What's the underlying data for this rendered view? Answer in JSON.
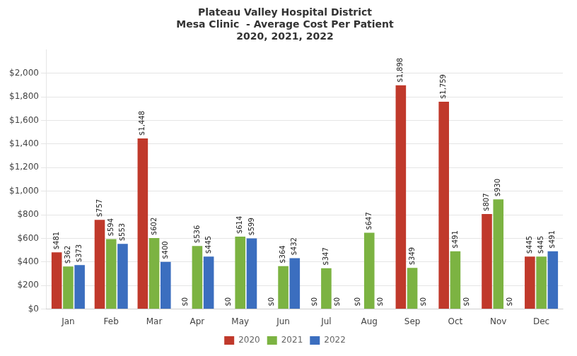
{
  "chart_data": {
    "type": "bar",
    "title": [
      "Plateau Valley Hospital District",
      "Mesa Clinic  - Average Cost Per Patient",
      "2020, 2021, 2022"
    ],
    "categories": [
      "Jan",
      "Feb",
      "Mar",
      "Apr",
      "May",
      "Jun",
      "Jul",
      "Aug",
      "Sep",
      "Oct",
      "Nov",
      "Dec"
    ],
    "series": [
      {
        "name": "2020",
        "color": "#C0392B",
        "values": [
          481,
          757,
          1448,
          0,
          0,
          0,
          0,
          0,
          1898,
          1759,
          807,
          445
        ],
        "value_labels": [
          "$481",
          "$757",
          "$1,448",
          "$0",
          "$0",
          "$0",
          "$0",
          "$0",
          "$1,898",
          "$1,759",
          "$807",
          "$445"
        ]
      },
      {
        "name": "2021",
        "color": "#7CB342",
        "values": [
          362,
          594,
          602,
          536,
          614,
          364,
          347,
          647,
          349,
          491,
          930,
          445
        ],
        "value_labels": [
          "$362",
          "$594",
          "$602",
          "$536",
          "$614",
          "$364",
          "$347",
          "$647",
          "$349",
          "$491",
          "$930",
          "$445"
        ]
      },
      {
        "name": "2022",
        "color": "#3B6EBF",
        "values": [
          373,
          553,
          400,
          445,
          599,
          432,
          0,
          0,
          0,
          0,
          0,
          491
        ],
        "value_labels": [
          "$373",
          "$553",
          "$400",
          "$445",
          "$599",
          "$432",
          "$0",
          "$0",
          "$0",
          "$0",
          "$0",
          "$491"
        ]
      }
    ],
    "ylim": [
      0,
      2200
    ],
    "yticks": [
      {
        "value": 0,
        "label": "$0"
      },
      {
        "value": 200,
        "label": "$200"
      },
      {
        "value": 400,
        "label": "$400"
      },
      {
        "value": 600,
        "label": "$600"
      },
      {
        "value": 800,
        "label": "$800"
      },
      {
        "value": 1000,
        "label": "$1,000"
      },
      {
        "value": 1200,
        "label": "$1,200"
      },
      {
        "value": 1400,
        "label": "$1,400"
      },
      {
        "value": 1600,
        "label": "$1,600"
      },
      {
        "value": 1800,
        "label": "$1,800"
      },
      {
        "value": 2000,
        "label": "$2,000"
      }
    ],
    "grid": true,
    "legend": "bottom",
    "data_labels": true
  }
}
